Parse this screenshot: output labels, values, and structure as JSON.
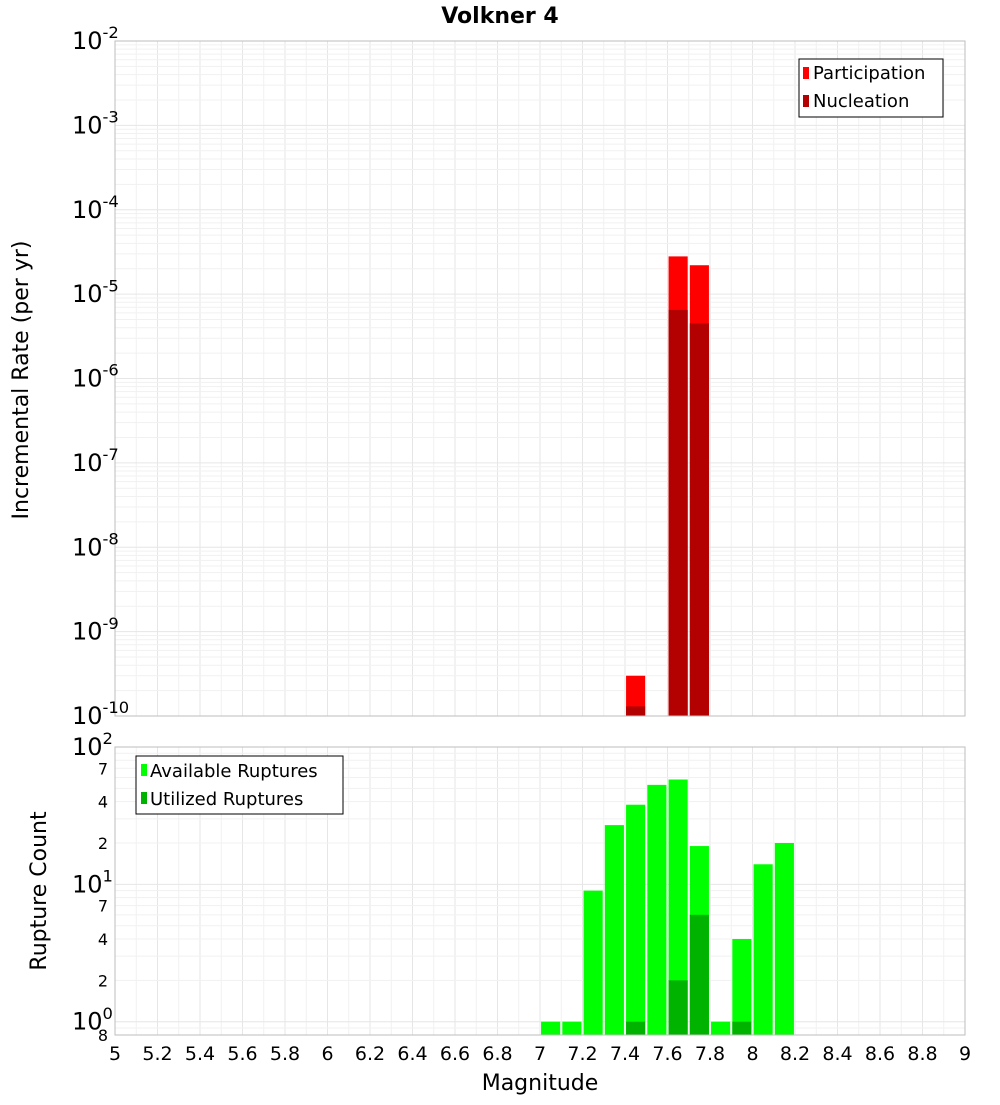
{
  "chart_data": [
    {
      "type": "bar",
      "title": "Volkner 4",
      "ylabel": "Incremental Rate (per yr)",
      "xlabel": "",
      "yscale": "log",
      "xlim": [
        5,
        9
      ],
      "ylim": [
        1e-10,
        0.01
      ],
      "y_tick_labels": [
        {
          "base": "10",
          "exp": "-10"
        },
        {
          "base": "10",
          "exp": "-9"
        },
        {
          "base": "10",
          "exp": "-8"
        },
        {
          "base": "10",
          "exp": "-7"
        },
        {
          "base": "10",
          "exp": "-6"
        },
        {
          "base": "10",
          "exp": "-5"
        },
        {
          "base": "10",
          "exp": "-4"
        },
        {
          "base": "10",
          "exp": "-3"
        },
        {
          "base": "10",
          "exp": "-2"
        }
      ],
      "grid": true,
      "legend_position": "top-right",
      "series": [
        {
          "name": "Participation",
          "color": "#ff0000",
          "bars": [
            {
              "x": 7.45,
              "y": 3e-10
            },
            {
              "x": 7.65,
              "y": 2.8e-05
            },
            {
              "x": 7.75,
              "y": 2.2e-05
            }
          ]
        },
        {
          "name": "Nucleation",
          "color": "#b30000",
          "bars": [
            {
              "x": 7.45,
              "y": 1.3e-10
            },
            {
              "x": 7.65,
              "y": 6.5e-06
            },
            {
              "x": 7.75,
              "y": 4.5e-06
            }
          ]
        }
      ]
    },
    {
      "type": "bar",
      "title": "",
      "ylabel": "Rupture Count",
      "xlabel": "Magnitude",
      "yscale": "log",
      "xlim": [
        5,
        9
      ],
      "ylim": [
        0.8,
        100
      ],
      "x_ticks": [
        "5",
        "5.2",
        "5.4",
        "5.6",
        "5.8",
        "6",
        "6.2",
        "6.4",
        "6.6",
        "6.8",
        "7",
        "7.2",
        "7.4",
        "7.6",
        "7.8",
        "8",
        "8.2",
        "8.4",
        "8.6",
        "8.8",
        "9"
      ],
      "y_major_labels": [
        {
          "value": 1,
          "base": "10",
          "exp": "0"
        },
        {
          "value": 10,
          "base": "10",
          "exp": "1"
        },
        {
          "value": 100,
          "base": "10",
          "exp": "2"
        }
      ],
      "y_minor_labels": [
        {
          "value": 0.8,
          "label": "8"
        },
        {
          "value": 2,
          "label": "2"
        },
        {
          "value": 4,
          "label": "4"
        },
        {
          "value": 7,
          "label": "7"
        },
        {
          "value": 20,
          "label": "2"
        },
        {
          "value": 40,
          "label": "4"
        },
        {
          "value": 70,
          "label": "7"
        }
      ],
      "grid": true,
      "legend_position": "top-left",
      "series": [
        {
          "name": "Available Ruptures",
          "color": "#00ff00",
          "bars": [
            {
              "x": 7.05,
              "y": 1
            },
            {
              "x": 7.15,
              "y": 1
            },
            {
              "x": 7.25,
              "y": 9
            },
            {
              "x": 7.35,
              "y": 27
            },
            {
              "x": 7.45,
              "y": 38
            },
            {
              "x": 7.55,
              "y": 53
            },
            {
              "x": 7.65,
              "y": 58
            },
            {
              "x": 7.75,
              "y": 19
            },
            {
              "x": 7.85,
              "y": 1
            },
            {
              "x": 7.95,
              "y": 4
            },
            {
              "x": 8.05,
              "y": 14
            },
            {
              "x": 8.15,
              "y": 20
            }
          ]
        },
        {
          "name": "Utilized Ruptures",
          "color": "#00b300",
          "bars": [
            {
              "x": 7.45,
              "y": 1
            },
            {
              "x": 7.65,
              "y": 2
            },
            {
              "x": 7.75,
              "y": 6
            },
            {
              "x": 7.95,
              "y": 1
            }
          ]
        }
      ]
    }
  ]
}
